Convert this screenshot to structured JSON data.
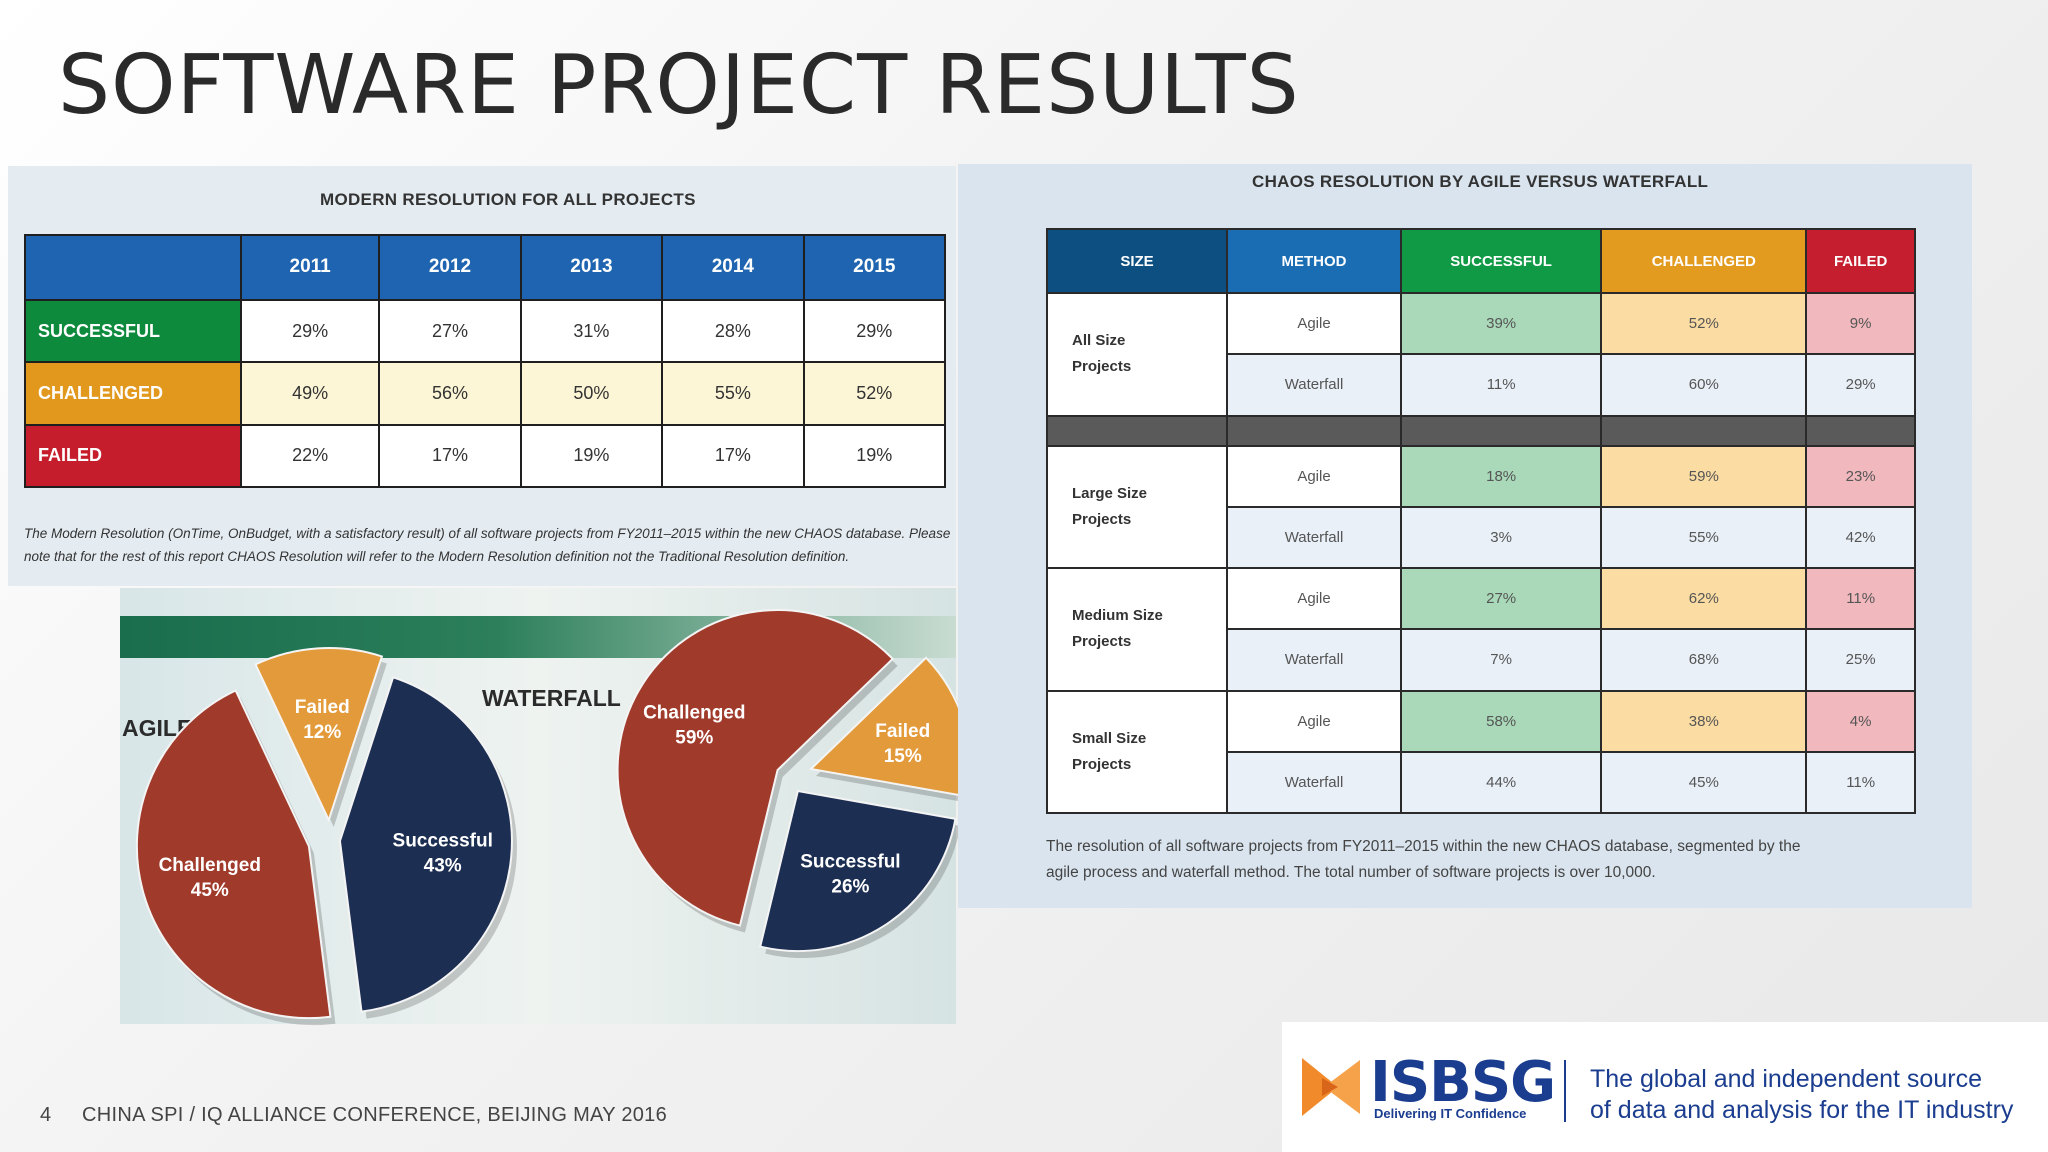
{
  "slide": {
    "title": "SOFTWARE PROJECT RESULTS",
    "page_number": "4",
    "footer": "CHINA SPI / IQ ALLIANCE CONFERENCE, BEIJING MAY 2016"
  },
  "logo": {
    "name": "ISBSG",
    "tagline": "Delivering IT Confidence",
    "claim_line1": "The global and independent source",
    "claim_line2": "of data and analysis for the IT industry"
  },
  "chart_data": [
    {
      "type": "table",
      "title": "MODERN RESOLUTION FOR ALL PROJECTS",
      "columns": [
        "2011",
        "2012",
        "2013",
        "2014",
        "2015"
      ],
      "rows": [
        {
          "label": "SUCCESSFUL",
          "values": [
            "29%",
            "27%",
            "31%",
            "28%",
            "29%"
          ]
        },
        {
          "label": "CHALLENGED",
          "values": [
            "49%",
            "56%",
            "50%",
            "55%",
            "52%"
          ]
        },
        {
          "label": "FAILED",
          "values": [
            "22%",
            "17%",
            "19%",
            "17%",
            "19%"
          ]
        }
      ],
      "note": "The Modern Resolution (OnTime, OnBudget, with a satisfactory result) of all software projects from FY2011–2015 within the new CHAOS database. Please note that for the rest of this report CHAOS Resolution will refer to the Modern Resolution definition not the Traditional Resolution definition."
    },
    {
      "type": "pie",
      "title": "AGILE",
      "slices": [
        {
          "label": "Successful",
          "value": 43,
          "value_label": "43%",
          "color": "#1c2e52"
        },
        {
          "label": "Challenged",
          "value": 45,
          "value_label": "45%",
          "color": "#a03a2b"
        },
        {
          "label": "Failed",
          "value": 12,
          "value_label": "12%",
          "color": "#e39a3a"
        }
      ]
    },
    {
      "type": "pie",
      "title": "WATERFALL",
      "slices": [
        {
          "label": "Successful",
          "value": 26,
          "value_label": "26%",
          "color": "#1c2e52"
        },
        {
          "label": "Challenged",
          "value": 59,
          "value_label": "59%",
          "color": "#a03a2b"
        },
        {
          "label": "Failed",
          "value": 15,
          "value_label": "15%",
          "color": "#e39a3a"
        }
      ]
    },
    {
      "type": "table",
      "title": "CHAOS RESOLUTION BY AGILE VERSUS WATERFALL",
      "columns": [
        "SIZE",
        "METHOD",
        "SUCCESSFUL",
        "CHALLENGED",
        "FAILED"
      ],
      "groups": [
        {
          "size": [
            "All Size",
            "Projects"
          ],
          "rows": [
            {
              "method": "Agile",
              "successful": "39%",
              "challenged": "52%",
              "failed": "9%"
            },
            {
              "method": "Waterfall",
              "successful": "11%",
              "challenged": "60%",
              "failed": "29%"
            }
          ]
        },
        {
          "size": [
            "Large Size",
            "Projects"
          ],
          "rows": [
            {
              "method": "Agile",
              "successful": "18%",
              "challenged": "59%",
              "failed": "23%"
            },
            {
              "method": "Waterfall",
              "successful": "3%",
              "challenged": "55%",
              "failed": "42%"
            }
          ]
        },
        {
          "size": [
            "Medium Size",
            "Projects"
          ],
          "rows": [
            {
              "method": "Agile",
              "successful": "27%",
              "challenged": "62%",
              "failed": "11%"
            },
            {
              "method": "Waterfall",
              "successful": "7%",
              "challenged": "68%",
              "failed": "25%"
            }
          ]
        },
        {
          "size": [
            "Small Size",
            "Projects"
          ],
          "rows": [
            {
              "method": "Agile",
              "successful": "58%",
              "challenged": "38%",
              "failed": "4%"
            },
            {
              "method": "Waterfall",
              "successful": "44%",
              "challenged": "45%",
              "failed": "11%"
            }
          ]
        }
      ],
      "note_line1": "The resolution of all software projects from FY2011–2015 within the new CHAOS database, segmented by the",
      "note_line2": "agile process and waterfall method. The total number of software projects is over 10,000."
    }
  ]
}
